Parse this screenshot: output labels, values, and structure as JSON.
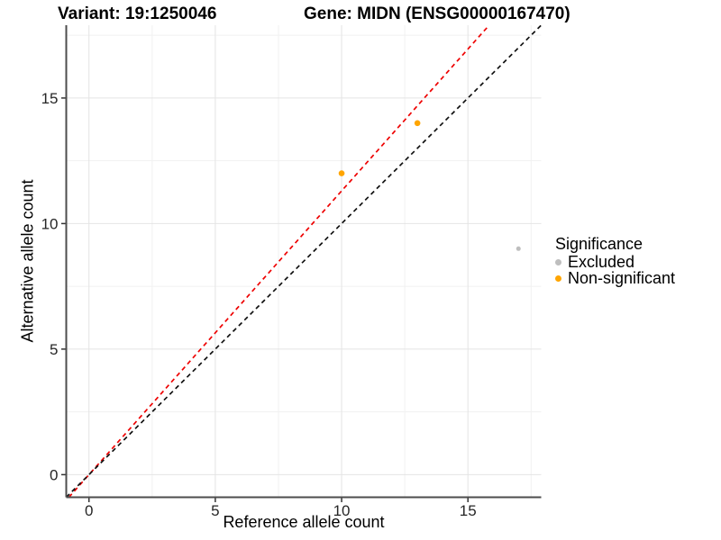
{
  "chart_data": {
    "type": "scatter",
    "titles": {
      "left": "Variant: 19:1250046",
      "right": "Gene: MIDN (ENSG00000167470)"
    },
    "xlabel": "Reference allele count",
    "ylabel": "Alternative allele count",
    "xlim": [
      -0.9,
      17.9
    ],
    "ylim": [
      -0.9,
      17.9
    ],
    "x_ticks": [
      0,
      5,
      10,
      15
    ],
    "y_ticks": [
      0,
      5,
      10,
      15
    ],
    "x_minor_ticks": [
      2.5,
      7.5,
      12.5,
      17.5
    ],
    "y_minor_ticks": [
      2.5,
      7.5,
      12.5,
      17.5
    ],
    "grid": true,
    "legend_position": "right",
    "series": [
      {
        "name": "Excluded",
        "color": "#bebebe",
        "point_radius": 2.5,
        "points": [
          [
            17,
            9
          ]
        ]
      },
      {
        "name": "Non-significant",
        "color": "#ffa500",
        "point_radius": 3.3,
        "points": [
          [
            10,
            12
          ],
          [
            13,
            14
          ]
        ]
      }
    ],
    "lines": [
      {
        "name": "expected-ratio-line",
        "color": "#ee0000",
        "slope": 1.13,
        "intercept": 0,
        "style": "dashed"
      },
      {
        "name": "identity-line",
        "color": "#111111",
        "slope": 1,
        "intercept": 0,
        "style": "dashed"
      }
    ],
    "legend": {
      "title": "Significance",
      "items": [
        {
          "label": "Excluded",
          "color": "#bebebe"
        },
        {
          "label": "Non-significant",
          "color": "#ffa500"
        }
      ]
    },
    "colors": {
      "major_grid": "#e4e4e4",
      "minor_grid": "#f1f1f1",
      "axis_line": "#4d4d4d",
      "tick_mark": "#333333",
      "tick_text": "#262626",
      "background": "#ffffff"
    }
  }
}
